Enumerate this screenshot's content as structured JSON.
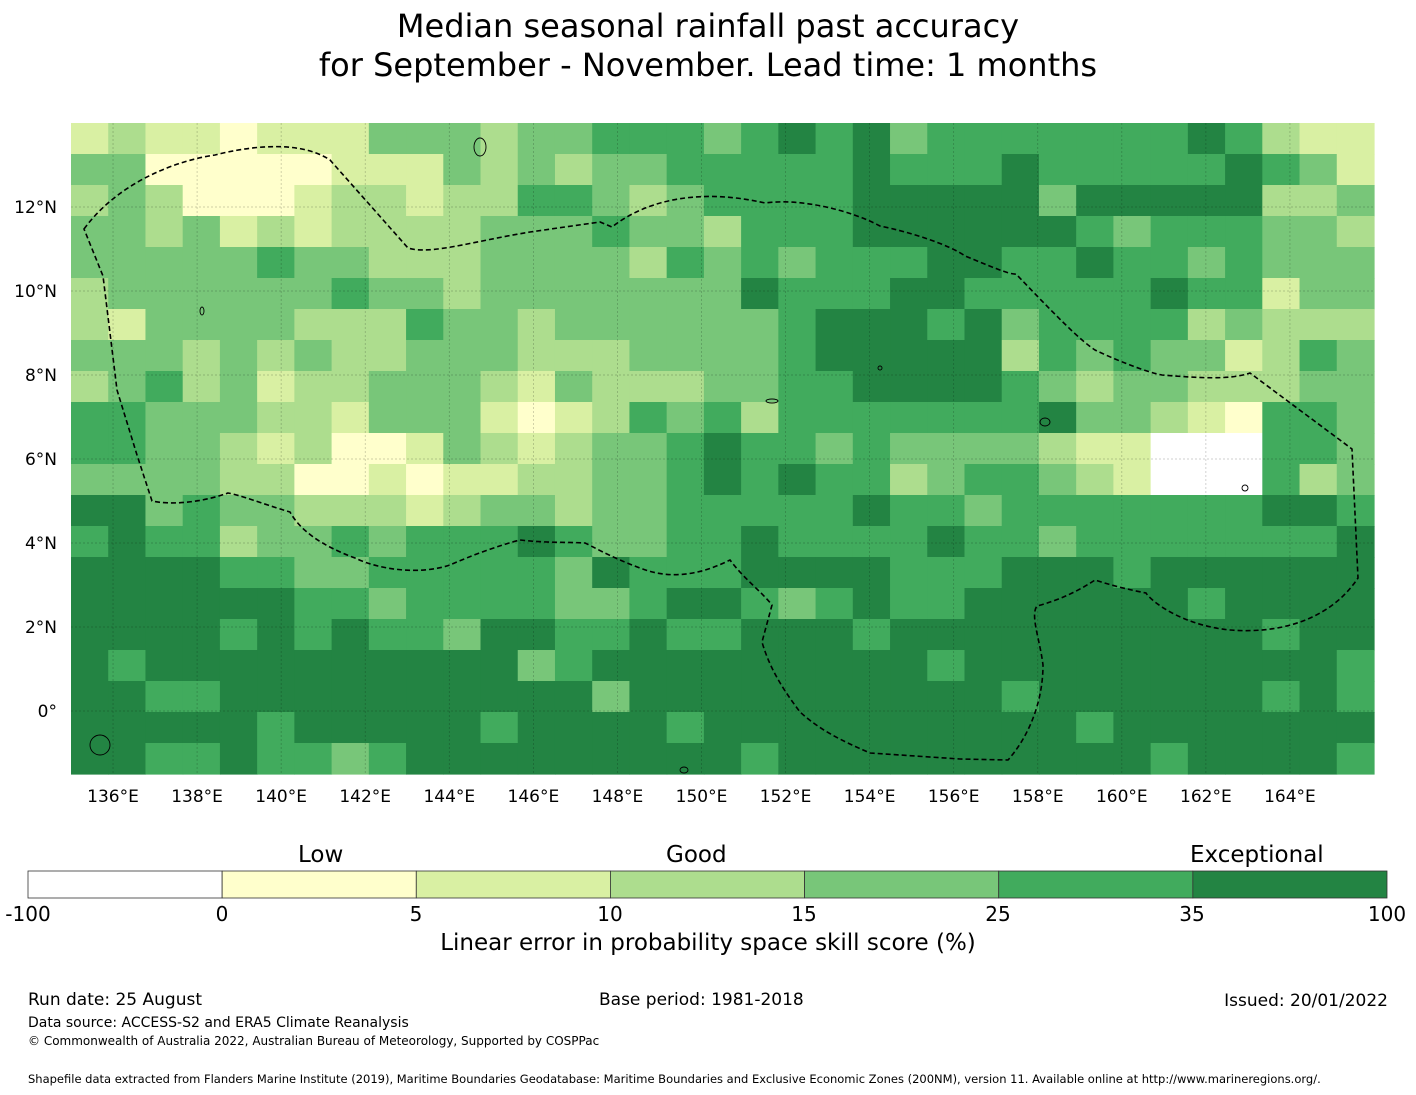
{
  "title_line1": "Median seasonal rainfall past accuracy",
  "title_line2": "for September - November. Lead time: 1 months",
  "map": {
    "lon_range": [
      135,
      166
    ],
    "lat_range": [
      -1.5,
      14
    ],
    "lon_ticks": [
      "136°E",
      "138°E",
      "140°E",
      "142°E",
      "144°E",
      "146°E",
      "148°E",
      "150°E",
      "152°E",
      "154°E",
      "156°E",
      "158°E",
      "160°E",
      "162°E",
      "164°E"
    ],
    "lat_ticks": [
      "12°N",
      "10°N",
      "8°N",
      "6°N",
      "4°N",
      "2°N",
      "0°"
    ],
    "grid": true,
    "boundary_style": "dashed",
    "colors": [
      "#ffffff",
      "#ffffcc",
      "#d9f0a3",
      "#addd8e",
      "#78c679",
      "#41ab5d",
      "#238443"
    ]
  },
  "colorbar": {
    "categories": [
      "Low",
      "Good",
      "Exceptional"
    ],
    "ticks": [
      "-100",
      "0",
      "5",
      "10",
      "15",
      "25",
      "35",
      "100"
    ],
    "colors": [
      "#ffffff",
      "#ffffcc",
      "#d9f0a3",
      "#addd8e",
      "#78c679",
      "#41ab5d",
      "#238443"
    ],
    "label": "Linear error in probability space skill score (%)"
  },
  "footer": {
    "run_date": "Run date: 25 August",
    "base_period": "Base period: 1981-2018",
    "issued": "Issued: 20/01/2022",
    "data_source": "Data source: ACCESS-S2 and ERA5 Climate Reanalysis",
    "copyright": "© Commonwealth of Australia 2022, Australian Bureau of Meteorology, Supported by COSPPac",
    "shapefile": "Shapefile data extracted from Flanders Marine Institute (2019), Maritime Boundaries Geodatabase: Maritime Boundaries and Exclusive Economic Zones (200NM), version 11. Available online at http://www.marineregions.org/."
  }
}
